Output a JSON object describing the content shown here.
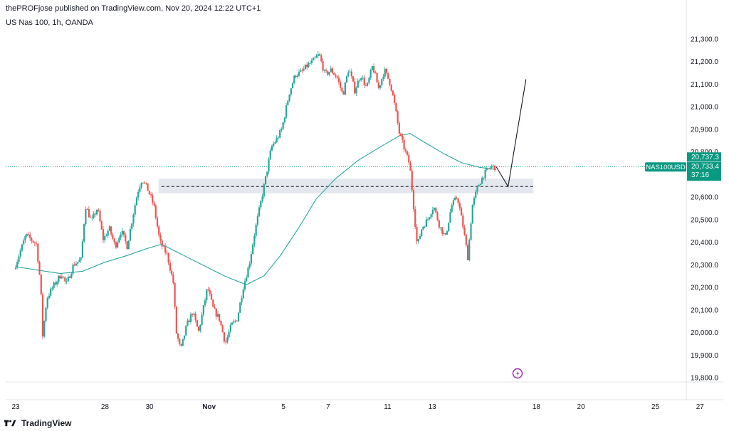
{
  "header": {
    "published": "thePROFjose published on TradingView.com, Nov 20, 2024 12:22 UTC+1",
    "symbol": "US Nas 100, 1h, OANDA"
  },
  "footer": {
    "brand": "TradingView"
  },
  "price_labels": {
    "symbol_tag": "NAS100USD",
    "ask": "20,737.3",
    "bid": "20,733.4",
    "countdown": "37:16"
  },
  "colors": {
    "up": "#26a69a",
    "down": "#ef5350",
    "ma": "#26a69a",
    "zone": "#e4e7ee",
    "accent": "#089981",
    "lightning": "#9c27b0"
  },
  "icons": {
    "lightning": "lightning-icon",
    "logo": "tradingview-logo-icon"
  },
  "chart_data": {
    "type": "candlestick",
    "yaxis": {
      "ticks": [
        "21,300.0",
        "21,200.0",
        "21,100.0",
        "21,000.0",
        "20,900.0",
        "20,800.0",
        "20,700.0",
        "20,600.0",
        "20,500.0",
        "20,400.0",
        "20,300.0",
        "20,200.0",
        "20,100.0",
        "20,000.0",
        "19,900.0",
        "19,800.0"
      ],
      "tick_values": [
        21300,
        21200,
        21100,
        21000,
        20900,
        20800,
        20700,
        20600,
        20500,
        20400,
        20300,
        20200,
        20100,
        20000,
        19900,
        19800
      ],
      "range": [
        19780,
        21345
      ]
    },
    "xaxis": {
      "labels": [
        "23",
        "28",
        "30",
        "Nov",
        "5",
        "7",
        "11",
        "13",
        "18",
        "20",
        "25",
        "27"
      ],
      "label_positions": [
        0,
        6,
        9,
        13,
        18,
        21,
        25,
        28,
        35,
        38,
        43,
        46
      ],
      "range": [
        0,
        46.8
      ]
    },
    "price_path": [
      [
        0,
        20280
      ],
      [
        0.8,
        20430
      ],
      [
        1.5,
        20390
      ],
      [
        1.8,
        20200
      ],
      [
        1.9,
        19970
      ],
      [
        2.2,
        20150
      ],
      [
        2.6,
        20200
      ],
      [
        3.2,
        20260
      ],
      [
        3.5,
        20210
      ],
      [
        4,
        20300
      ],
      [
        4.5,
        20320
      ],
      [
        4.8,
        20560
      ],
      [
        5.2,
        20490
      ],
      [
        5.6,
        20550
      ],
      [
        6,
        20410
      ],
      [
        6.4,
        20460
      ],
      [
        6.8,
        20380
      ],
      [
        7.2,
        20450
      ],
      [
        7.6,
        20380
      ],
      [
        8,
        20520
      ],
      [
        8.3,
        20620
      ],
      [
        8.6,
        20680
      ],
      [
        9,
        20630
      ],
      [
        9.4,
        20560
      ],
      [
        9.8,
        20400
      ],
      [
        10.3,
        20340
      ],
      [
        10.7,
        20220
      ],
      [
        10.9,
        20000
      ],
      [
        11.2,
        19920
      ],
      [
        11.6,
        20030
      ],
      [
        12,
        20090
      ],
      [
        12.4,
        20000
      ],
      [
        12.8,
        20130
      ],
      [
        13,
        20200
      ],
      [
        13.4,
        20100
      ],
      [
        13.8,
        20060
      ],
      [
        14.2,
        19950
      ],
      [
        14.6,
        20030
      ],
      [
        15,
        20060
      ],
      [
        15.4,
        20200
      ],
      [
        15.8,
        20300
      ],
      [
        16.2,
        20450
      ],
      [
        16.6,
        20580
      ],
      [
        16.9,
        20680
      ],
      [
        17.3,
        20820
      ],
      [
        17.7,
        20860
      ],
      [
        18,
        20900
      ],
      [
        18.5,
        21060
      ],
      [
        18.9,
        21140
      ],
      [
        19.3,
        21150
      ],
      [
        19.7,
        21180
      ],
      [
        20.1,
        21200
      ],
      [
        20.5,
        21230
      ],
      [
        20.9,
        21140
      ],
      [
        21.3,
        21160
      ],
      [
        21.7,
        21130
      ],
      [
        22.1,
        21050
      ],
      [
        22.5,
        21170
      ],
      [
        22.9,
        21070
      ],
      [
        23.3,
        21140
      ],
      [
        23.7,
        21080
      ],
      [
        24.1,
        21180
      ],
      [
        24.5,
        21080
      ],
      [
        24.9,
        21160
      ],
      [
        25.3,
        21100
      ],
      [
        25.6,
        21000
      ],
      [
        25.9,
        20880
      ],
      [
        26.3,
        20800
      ],
      [
        26.6,
        20740
      ],
      [
        26.8,
        20600
      ],
      [
        27.1,
        20380
      ],
      [
        27.4,
        20460
      ],
      [
        27.8,
        20500
      ],
      [
        28.2,
        20560
      ],
      [
        28.6,
        20470
      ],
      [
        29,
        20420
      ],
      [
        29.4,
        20560
      ],
      [
        29.8,
        20600
      ],
      [
        30.2,
        20460
      ],
      [
        30.5,
        20330
      ],
      [
        30.8,
        20560
      ],
      [
        31.2,
        20650
      ],
      [
        31.6,
        20700
      ],
      [
        32,
        20730
      ],
      [
        32.3,
        20733
      ]
    ],
    "moving_average": [
      [
        0,
        20290
      ],
      [
        1.5,
        20275
      ],
      [
        3,
        20260
      ],
      [
        4.5,
        20270
      ],
      [
        6,
        20310
      ],
      [
        7.5,
        20340
      ],
      [
        8.8,
        20370
      ],
      [
        9.8,
        20390
      ],
      [
        11,
        20350
      ],
      [
        12.5,
        20300
      ],
      [
        14,
        20250
      ],
      [
        15.5,
        20210
      ],
      [
        16.7,
        20250
      ],
      [
        17.8,
        20340
      ],
      [
        19,
        20460
      ],
      [
        20.2,
        20590
      ],
      [
        21.5,
        20680
      ],
      [
        23,
        20760
      ],
      [
        24.5,
        20820
      ],
      [
        25.8,
        20870
      ],
      [
        26.5,
        20880
      ],
      [
        27.5,
        20840
      ],
      [
        28.8,
        20790
      ],
      [
        30,
        20750
      ],
      [
        31.2,
        20730
      ],
      [
        32.3,
        20720
      ]
    ],
    "zone": {
      "x": [
        9.6,
        34.8
      ],
      "y": [
        20615,
        20680
      ]
    },
    "dashed_level": {
      "y": 20645,
      "x": [
        9.8,
        34.8
      ]
    },
    "current_price": 20733.4,
    "projection": [
      [
        32.3,
        20733
      ],
      [
        33.1,
        20645
      ],
      [
        34.3,
        21120
      ]
    ]
  }
}
